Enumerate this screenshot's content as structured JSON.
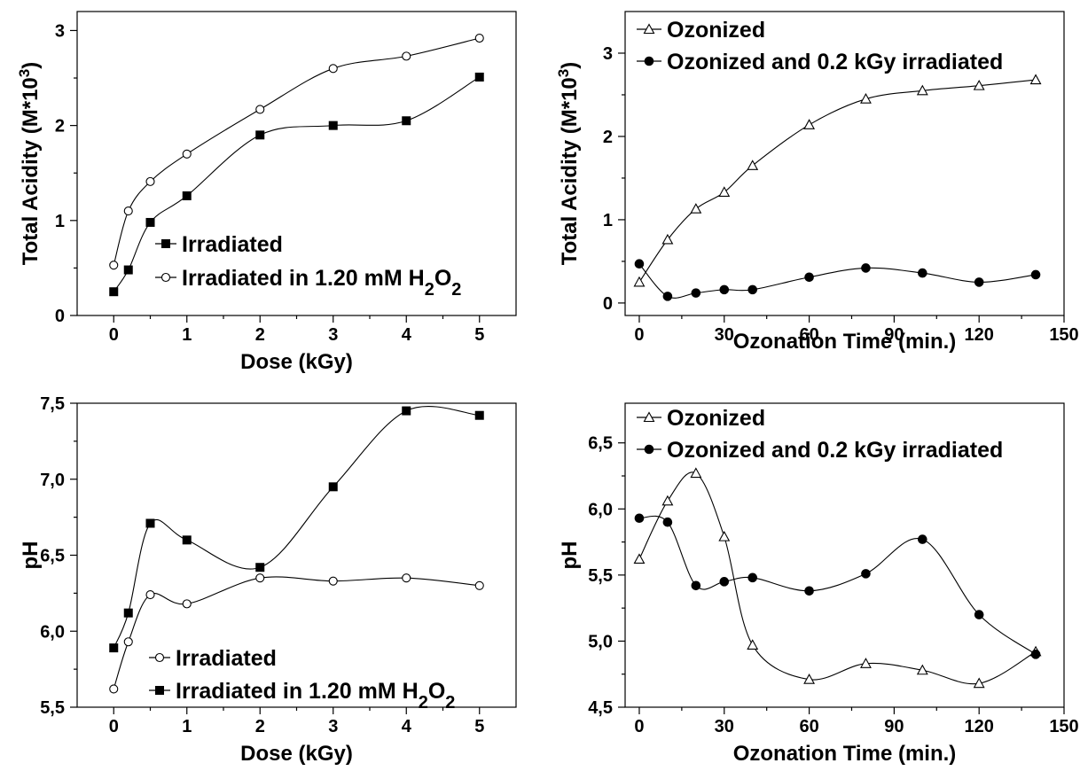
{
  "chart_data": [
    {
      "type": "line",
      "xlabel": "Dose (kGy)",
      "ylabel": "Total Acidity (M*10^3)",
      "xlim": [
        -0.5,
        5.5
      ],
      "ylim": [
        0,
        3.2
      ],
      "x_ticks": [
        "0",
        "1",
        "2",
        "3",
        "4",
        "5"
      ],
      "y_ticks": [
        "0",
        "1",
        "2",
        "3"
      ],
      "legend_position": "bottom-right",
      "series": [
        {
          "name": "Irradiated",
          "marker": "filled-square",
          "x": [
            0,
            0.2,
            0.5,
            1,
            2,
            3,
            4,
            5
          ],
          "y": [
            0.25,
            0.48,
            0.98,
            1.26,
            1.9,
            2.0,
            2.05,
            2.51
          ]
        },
        {
          "name": "Irradiated in 1.20 mM H2O2",
          "marker": "open-circle",
          "x": [
            0,
            0.2,
            0.5,
            1,
            2,
            3,
            4,
            5
          ],
          "y": [
            0.53,
            1.1,
            1.41,
            1.7,
            2.17,
            2.6,
            2.73,
            2.92
          ]
        }
      ]
    },
    {
      "type": "line",
      "xlabel": "Ozonation Time (min.)",
      "ylabel": "Total Acidity (M*10^3)",
      "xlim": [
        -5,
        150
      ],
      "ylim": [
        -0.15,
        3.5
      ],
      "x_ticks": [
        "0",
        "30",
        "60",
        "90",
        "120",
        "150"
      ],
      "y_ticks": [
        "0",
        "1",
        "2",
        "3"
      ],
      "legend_position": "top-left",
      "series": [
        {
          "name": "Ozonized",
          "marker": "open-triangle",
          "x": [
            0,
            10,
            20,
            30,
            40,
            60,
            80,
            100,
            120,
            140
          ],
          "y": [
            0.25,
            0.76,
            1.13,
            1.33,
            1.65,
            2.14,
            2.45,
            2.55,
            2.61,
            2.68
          ]
        },
        {
          "name": "Ozonized and 0.2 kGy irradiated",
          "marker": "filled-circle",
          "x": [
            0,
            10,
            20,
            30,
            40,
            60,
            80,
            100,
            120,
            140
          ],
          "y": [
            0.47,
            0.08,
            0.12,
            0.16,
            0.16,
            0.31,
            0.42,
            0.36,
            0.25,
            0.34
          ]
        }
      ]
    },
    {
      "type": "line",
      "xlabel": "Dose (kGy)",
      "ylabel": "pH",
      "xlim": [
        -0.5,
        5.5
      ],
      "ylim": [
        5.5,
        7.5
      ],
      "x_ticks": [
        "0",
        "1",
        "2",
        "3",
        "4",
        "5"
      ],
      "y_ticks": [
        "5,5",
        "6,0",
        "6,5",
        "7,0",
        "7,5"
      ],
      "legend_position": "bottom-right",
      "series": [
        {
          "name": "Irradiated",
          "marker": "open-circle",
          "x": [
            0,
            0.2,
            0.5,
            1,
            2,
            3,
            4,
            5
          ],
          "y": [
            5.62,
            5.93,
            6.24,
            6.18,
            6.35,
            6.33,
            6.35,
            6.3
          ]
        },
        {
          "name": "Irradiated in 1.20 mM H2O2",
          "marker": "filled-square",
          "x": [
            0,
            0.2,
            0.5,
            1,
            2,
            3,
            4,
            5
          ],
          "y": [
            5.89,
            6.12,
            6.71,
            6.6,
            6.42,
            6.95,
            7.45,
            7.42
          ]
        }
      ]
    },
    {
      "type": "line",
      "xlabel": "Ozonation Time (min.)",
      "ylabel": "pH",
      "xlim": [
        -5,
        150
      ],
      "ylim": [
        4.5,
        6.8
      ],
      "x_ticks": [
        "0",
        "30",
        "60",
        "90",
        "120",
        "150"
      ],
      "y_ticks": [
        "4,5",
        "5,0",
        "5,5",
        "6,0",
        "6,5"
      ],
      "legend_position": "top-right",
      "series": [
        {
          "name": "Ozonized",
          "marker": "open-triangle",
          "x": [
            0,
            10,
            20,
            30,
            40,
            60,
            80,
            100,
            120,
            140
          ],
          "y": [
            5.62,
            6.06,
            6.27,
            5.79,
            4.97,
            4.71,
            4.83,
            4.78,
            4.68,
            4.92
          ]
        },
        {
          "name": "Ozonized and 0.2 kGy irradiated",
          "marker": "filled-circle",
          "x": [
            0,
            10,
            20,
            30,
            40,
            60,
            80,
            100,
            120,
            140
          ],
          "y": [
            5.93,
            5.9,
            5.42,
            5.45,
            5.48,
            5.38,
            5.51,
            5.77,
            5.2,
            4.9
          ]
        }
      ]
    }
  ]
}
